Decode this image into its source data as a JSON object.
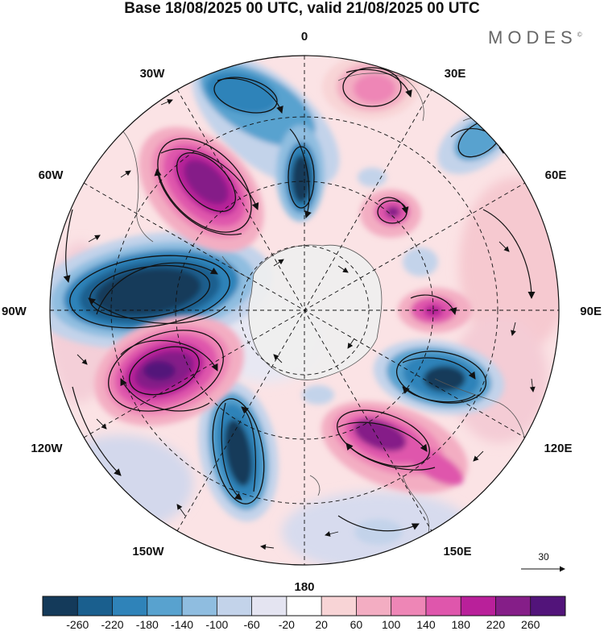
{
  "title": "Base 18/08/2025 00 UTC, valid 21/08/2025 00 UTC",
  "logo": "MODES",
  "logo_mark": "©",
  "longitude_labels": {
    "top": "0",
    "bottom": "180",
    "left": "90W",
    "right": "90E",
    "nw_upper": "30W",
    "nw_lower": "60W",
    "ne_upper": "30E",
    "ne_lower": "60E",
    "sw_upper": "120W",
    "sw_lower": "150W",
    "se_upper": "120E",
    "se_lower": "150E"
  },
  "reference_vector": {
    "value": "30"
  },
  "colorbar": {
    "ticks": [
      "-260",
      "-220",
      "-180",
      "-140",
      "-100",
      "-60",
      "-20",
      "20",
      "60",
      "100",
      "140",
      "180",
      "220",
      "260"
    ],
    "colors": [
      "#143a5a",
      "#1a5f8e",
      "#2f83b9",
      "#58a2cf",
      "#8fbde0",
      "#c3d3ea",
      "#e4e4f1",
      "#ffffff",
      "#f8d4d6",
      "#f3adc2",
      "#ee86b6",
      "#df56ac",
      "#b9209a",
      "#851e88",
      "#52147a"
    ]
  },
  "colors": {
    "land": "#efefef",
    "coast": "#555555",
    "contour": "#111111"
  }
}
